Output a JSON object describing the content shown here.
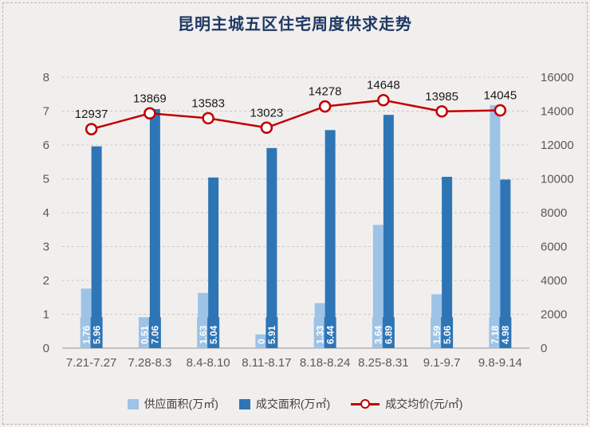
{
  "title": "昆明主城五区住宅周度供求走势",
  "chart_data": {
    "type": "bar+line combo",
    "categories": [
      "7.21-7.27",
      "7.28-8.3",
      "8.4-8.10",
      "8.11-8.17",
      "8.18-8.24",
      "8.25-8.31",
      "9.1-9.7",
      "9.8-9.14"
    ],
    "series": [
      {
        "name": "供应面积(万㎡)",
        "type": "bar",
        "axis": "left",
        "color": "#9dc3e6",
        "values": [
          1.76,
          0.51,
          1.63,
          0,
          1.33,
          3.64,
          1.59,
          7.18
        ]
      },
      {
        "name": "成交面积(万㎡)",
        "type": "bar",
        "axis": "left",
        "color": "#2e75b6",
        "values": [
          5.96,
          7.06,
          5.04,
          5.91,
          6.44,
          6.89,
          5.06,
          4.98
        ]
      },
      {
        "name": "成交均价(元/㎡)",
        "type": "line",
        "axis": "right",
        "color": "#c00000",
        "marker": "open-circle",
        "values": [
          12937,
          13869,
          13583,
          13023,
          14278,
          14648,
          13985,
          14045
        ]
      }
    ],
    "left_axis": {
      "min": 0,
      "max": 8,
      "ticks": [
        "0",
        "1",
        "2",
        "3",
        "4",
        "5",
        "6",
        "7",
        "8"
      ]
    },
    "right_axis": {
      "min": 0,
      "max": 16000,
      "ticks": [
        "0",
        "2000",
        "4000",
        "6000",
        "8000",
        "10000",
        "12000",
        "14000",
        "16000"
      ]
    },
    "grid": "horizontal dashed",
    "legend_position": "bottom",
    "bar_value_labels": "vertical white text on series-colored chips at bar base",
    "line_value_labels": "above markers"
  },
  "colors": {
    "background": "#f1efed",
    "supply_bar": "#9dc3e6",
    "deal_bar": "#2e75b6",
    "price_line": "#c00000",
    "grid": "#c9c9c9",
    "axis_line": "#a8a8a8",
    "axis_text": "#595959",
    "title_text": "#1f3864",
    "value_label_text": "#1a1a1a"
  }
}
